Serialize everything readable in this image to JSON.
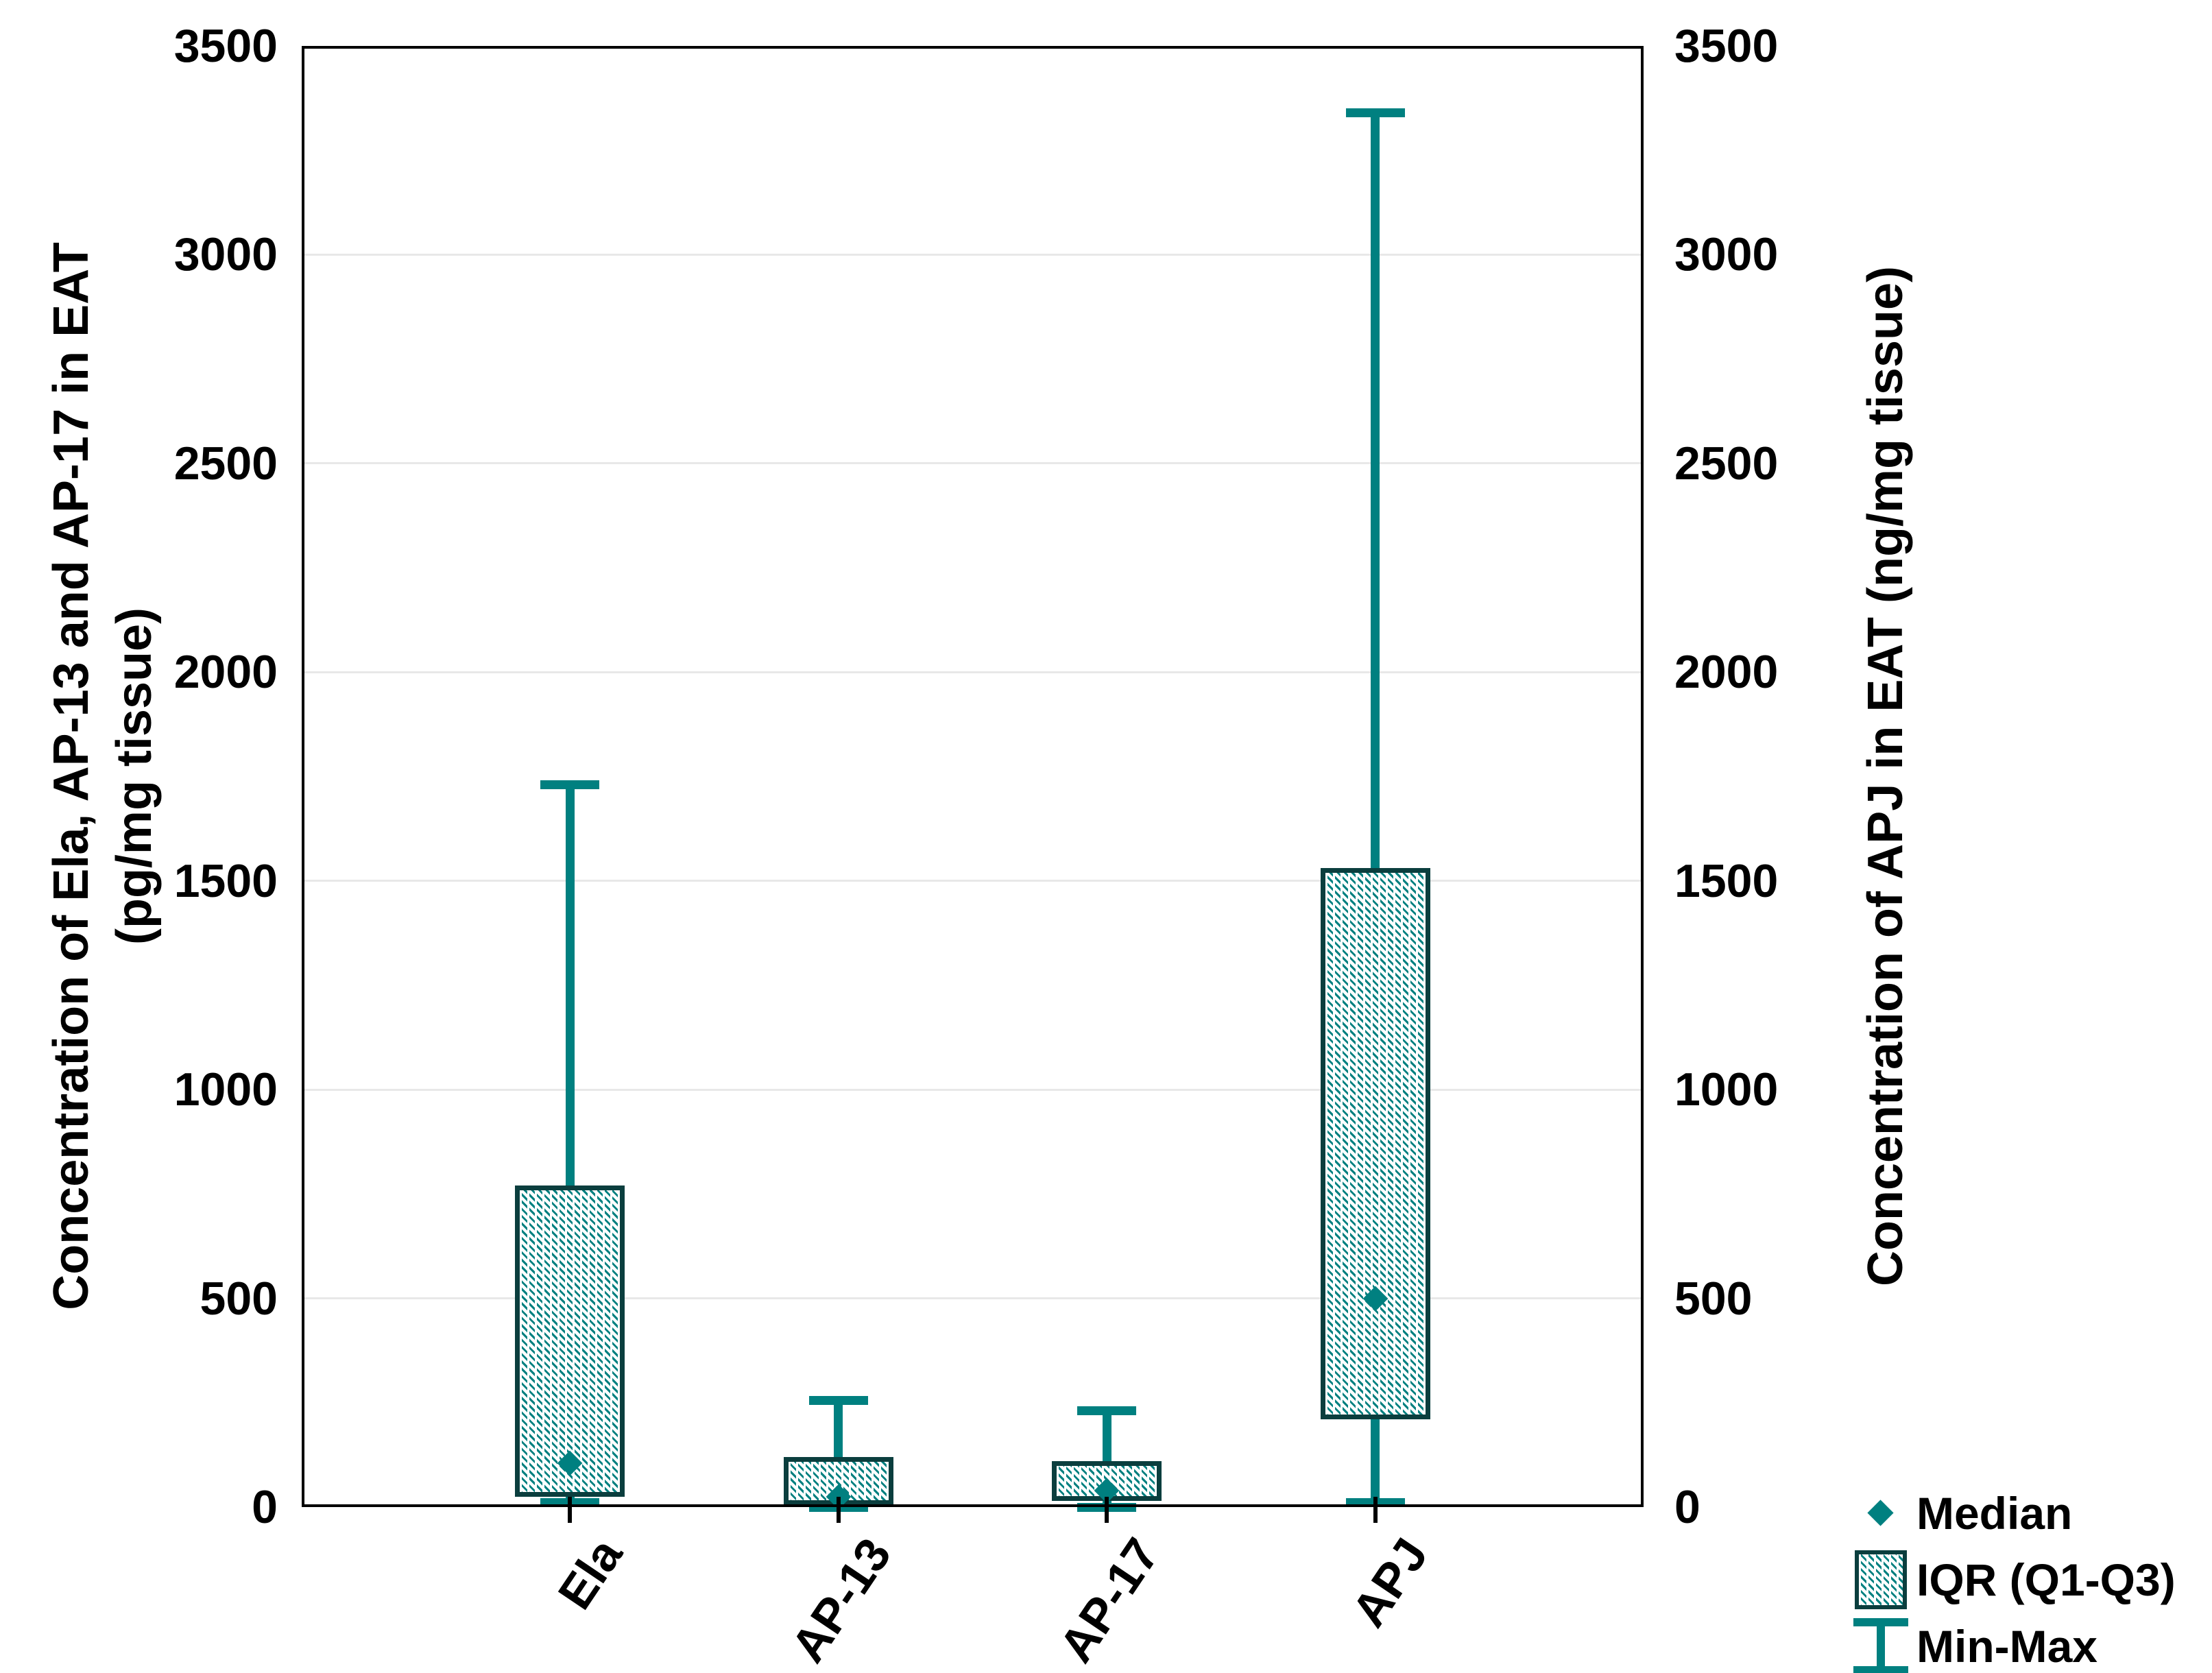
{
  "chart_data": {
    "type": "box",
    "categories": [
      "Ela",
      "AP-13",
      "AP-17",
      "APJ"
    ],
    "series": [
      {
        "name": "Ela",
        "min": 10,
        "q1": 25,
        "median": 105,
        "q3": 770,
        "max": 1730
      },
      {
        "name": "AP-13",
        "min": 0,
        "q1": 5,
        "median": 25,
        "q3": 120,
        "max": 255
      },
      {
        "name": "AP-17",
        "min": 0,
        "q1": 15,
        "median": 40,
        "q3": 110,
        "max": 230
      },
      {
        "name": "APJ",
        "min": 10,
        "q1": 210,
        "median": 500,
        "q3": 1530,
        "max": 3340
      }
    ],
    "y_left": {
      "label_line1": "Concentration of Ela, AP-13 and AP-17 in EAT",
      "label_line2": "(pg/mg tissue)",
      "min": 0,
      "max": 3500,
      "tick_step": 500,
      "ticks": [
        0,
        500,
        1000,
        1500,
        2000,
        2500,
        3000,
        3500
      ]
    },
    "y_right": {
      "label": "Concentration of APJ in EAT (ng/mg tissue)",
      "min": 0,
      "max": 3500,
      "tick_step": 500,
      "ticks": [
        0,
        500,
        1000,
        1500,
        2000,
        2500,
        3000,
        3500
      ]
    },
    "gridlines": [
      500,
      1000,
      1500,
      2000,
      2500,
      3000
    ],
    "grid": "horizontal",
    "legend_position": "bottom-right",
    "legend": {
      "median_label": "Median",
      "iqr_label": "IQR (Q1-Q3)",
      "minmax_label": "Min-Max"
    }
  },
  "colors": {
    "accent_teal": "#008080",
    "box_border_dark_teal": "#0b3e3e",
    "gridline_gray": "#e8e8e8",
    "axis_black": "#000000",
    "background": "#ffffff"
  }
}
